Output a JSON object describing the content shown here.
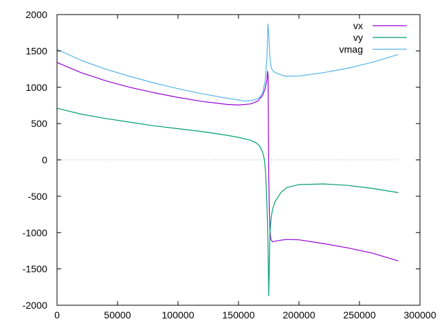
{
  "chart_data": {
    "type": "line",
    "title": "",
    "xlabel": "",
    "ylabel": "",
    "xlim": [
      0,
      300000
    ],
    "ylim": [
      -2000,
      2000
    ],
    "xticks": [
      0,
      50000,
      100000,
      150000,
      200000,
      250000,
      300000
    ],
    "yticks": [
      -2000,
      -1500,
      -1000,
      -500,
      0,
      500,
      1000,
      1500,
      2000
    ],
    "xtick_labels": [
      "0",
      "50000",
      "100000",
      "150000",
      "200000",
      "250000",
      "300000"
    ],
    "ytick_labels": [
      "-2000",
      "-1500",
      "-1000",
      "-500",
      "0",
      "500",
      "1000",
      "1500",
      "2000"
    ],
    "grid": false,
    "zero_line": true,
    "legend_position": "top-right",
    "series": [
      {
        "name": "vx",
        "color": "#9400d3",
        "x": [
          0,
          20000,
          40000,
          60000,
          80000,
          100000,
          120000,
          140000,
          150000,
          160000,
          166000,
          170000,
          172000,
          173500,
          174000,
          174500,
          175000,
          175500,
          176000,
          176500,
          177000,
          178000,
          180000,
          185000,
          190000,
          200000,
          220000,
          240000,
          260000,
          282000
        ],
        "y": [
          1340,
          1200,
          1090,
          1000,
          925,
          860,
          805,
          765,
          755,
          770,
          810,
          890,
          980,
          1100,
          1220,
          1150,
          -200,
          -700,
          -960,
          -1060,
          -1100,
          -1125,
          -1120,
          -1105,
          -1095,
          -1100,
          -1150,
          -1210,
          -1280,
          -1390
        ]
      },
      {
        "name": "vy",
        "color": "#009e73",
        "x": [
          0,
          20000,
          40000,
          60000,
          80000,
          100000,
          120000,
          140000,
          150000,
          160000,
          165000,
          168000,
          170000,
          171500,
          172500,
          173500,
          174300,
          175000,
          175500,
          176000,
          177000,
          178000,
          180000,
          185000,
          190000,
          200000,
          220000,
          240000,
          260000,
          282000
        ],
        "y": [
          710,
          630,
          570,
          520,
          470,
          430,
          390,
          340,
          310,
          270,
          230,
          180,
          100,
          0,
          -200,
          -600,
          -1100,
          -1870,
          -1400,
          -1000,
          -800,
          -690,
          -580,
          -450,
          -380,
          -340,
          -330,
          -350,
          -390,
          -450
        ]
      },
      {
        "name": "vmag",
        "color": "#56b4e9",
        "x": [
          0,
          20000,
          40000,
          60000,
          80000,
          100000,
          120000,
          140000,
          150000,
          155000,
          160000,
          165000,
          168000,
          170000,
          172000,
          173500,
          174300,
          175000,
          175800,
          176500,
          177500,
          179000,
          182000,
          186000,
          190000,
          200000,
          220000,
          240000,
          260000,
          282000
        ],
        "y": [
          1520,
          1370,
          1250,
          1150,
          1060,
          980,
          910,
          850,
          825,
          810,
          815,
          835,
          870,
          930,
          1080,
          1400,
          1870,
          1750,
          1450,
          1320,
          1250,
          1215,
          1190,
          1165,
          1150,
          1155,
          1200,
          1260,
          1340,
          1450
        ]
      }
    ]
  }
}
